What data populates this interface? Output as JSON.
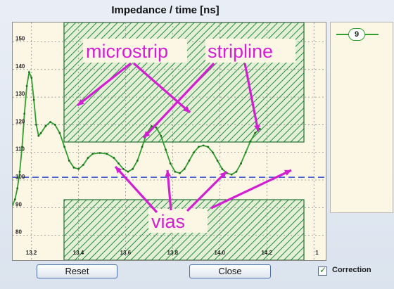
{
  "window": {
    "title": "Impedance  / time [ns]"
  },
  "chart_data": {
    "type": "line",
    "title": "Impedance  / time [ns]",
    "xlabel": "time [ns]",
    "ylabel": "Impedance",
    "xlim": [
      13.12,
      14.45
    ],
    "ylim": [
      71,
      157
    ],
    "x_ticks": [
      "13.2",
      "13.4",
      "13.6",
      "13.8",
      "14.0",
      "14.2",
      "1"
    ],
    "y_ticks": [
      "150",
      "140",
      "130",
      "120",
      "110",
      "100",
      "90",
      "80"
    ],
    "grid": true,
    "reference_line": 101,
    "reference_color": "#4a5bd0",
    "series": [
      {
        "name": "9",
        "color": "#2f9e2f",
        "points": [
          [
            13.12,
            91
          ],
          [
            13.13,
            93
          ],
          [
            13.14,
            97
          ],
          [
            13.15,
            103
          ],
          [
            13.16,
            112
          ],
          [
            13.17,
            124
          ],
          [
            13.18,
            134
          ],
          [
            13.19,
            139
          ],
          [
            13.2,
            137
          ],
          [
            13.21,
            129
          ],
          [
            13.22,
            120
          ],
          [
            13.23,
            116
          ],
          [
            13.24,
            117
          ],
          [
            13.26,
            119.5
          ],
          [
            13.28,
            121
          ],
          [
            13.3,
            120
          ],
          [
            13.32,
            117
          ],
          [
            13.34,
            112
          ],
          [
            13.36,
            107
          ],
          [
            13.38,
            104.5
          ],
          [
            13.4,
            104
          ],
          [
            13.42,
            105.5
          ],
          [
            13.44,
            108
          ],
          [
            13.46,
            109.5
          ],
          [
            13.49,
            109.8
          ],
          [
            13.52,
            109.5
          ],
          [
            13.55,
            108
          ],
          [
            13.57,
            106
          ],
          [
            13.59,
            104
          ],
          [
            13.61,
            103
          ],
          [
            13.63,
            104
          ],
          [
            13.65,
            107
          ],
          [
            13.67,
            112
          ],
          [
            13.69,
            117
          ],
          [
            13.71,
            119.5
          ],
          [
            13.73,
            119
          ],
          [
            13.75,
            116
          ],
          [
            13.77,
            111
          ],
          [
            13.79,
            106
          ],
          [
            13.81,
            103
          ],
          [
            13.83,
            102.5
          ],
          [
            13.85,
            104
          ],
          [
            13.87,
            107
          ],
          [
            13.89,
            110
          ],
          [
            13.91,
            112
          ],
          [
            13.93,
            112.5
          ],
          [
            13.95,
            112
          ],
          [
            13.97,
            110
          ],
          [
            13.99,
            107
          ],
          [
            14.01,
            104
          ],
          [
            14.03,
            102.5
          ],
          [
            14.05,
            102
          ],
          [
            14.07,
            103
          ],
          [
            14.09,
            106
          ],
          [
            14.11,
            110
          ],
          [
            14.13,
            114
          ],
          [
            14.15,
            117
          ],
          [
            14.17,
            118.5
          ]
        ]
      }
    ],
    "annotations": [
      "microstrip",
      "stripline",
      "vias"
    ],
    "annotation_color": "#d21fd2",
    "shaded_region_color": "#1f8f3f"
  },
  "legend": {
    "items": [
      {
        "label": "9",
        "color": "#2f9e2f"
      }
    ]
  },
  "buttons": {
    "reset_label": "Reset",
    "close_label": "Close"
  },
  "correction": {
    "label": "Correction",
    "checked": true,
    "check_glyph": "✓"
  }
}
